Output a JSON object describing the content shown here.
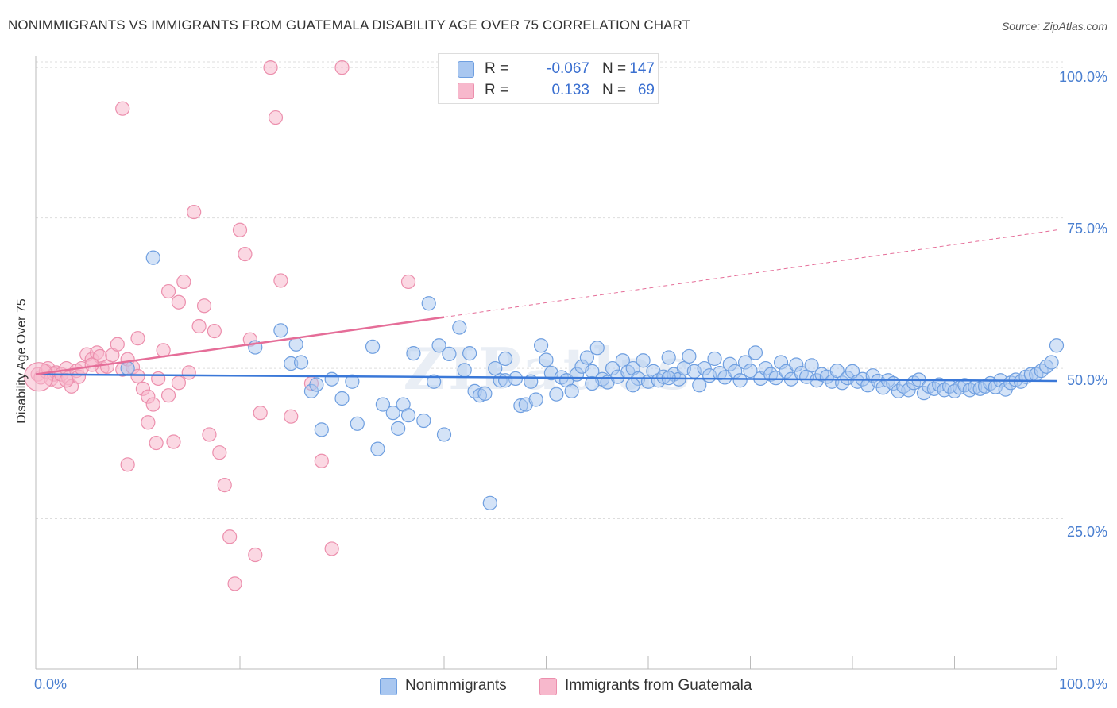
{
  "title": "NONIMMIGRANTS VS IMMIGRANTS FROM GUATEMALA DISABILITY AGE OVER 75 CORRELATION CHART",
  "source": "Source: ZipAtlas.com",
  "watermark": "ZIPatlas",
  "colors": {
    "blue_fill": "#a9c7f0",
    "blue_stroke": "#6f9fe0",
    "blue_line": "#3a78d8",
    "pink_fill": "#f7b8cc",
    "pink_stroke": "#ec8fad",
    "pink_line": "#e56d98",
    "axis_text": "#4a7fd0",
    "grid": "#dddddd"
  },
  "legend": {
    "rows": [
      {
        "r_label": "R =",
        "r_value": "-0.067",
        "n_label": "N =",
        "n_value": "147",
        "color": "#a9c7f0"
      },
      {
        "r_label": "R =",
        "r_value": "0.133",
        "n_label": "N =",
        "n_value": "69",
        "color": "#f7b8cc"
      }
    ]
  },
  "bottom_legend": [
    {
      "label": "Nonimmigrants",
      "color": "#a9c7f0"
    },
    {
      "label": "Immigrants from Guatemala",
      "color": "#f7b8cc"
    }
  ],
  "chart_data": {
    "type": "scatter",
    "title": "NONIMMIGRANTS VS IMMIGRANTS FROM GUATEMALA DISABILITY AGE OVER 75 CORRELATION CHART",
    "xlabel": "",
    "ylabel": "Disability Age Over 75",
    "xlim": [
      0,
      100
    ],
    "ylim": [
      0,
      102
    ],
    "x_tick_labels": [
      "0.0%",
      "100.0%"
    ],
    "y_ticks": [
      25,
      50,
      75,
      100
    ],
    "y_tick_labels": [
      "25.0%",
      "50.0%",
      "75.0%",
      "100.0%"
    ],
    "grid": true,
    "series": [
      {
        "name": "Nonimmigrants",
        "r": -0.067,
        "n": 147,
        "trend": {
          "x0": 0,
          "y0": 49.0,
          "x1": 100,
          "y1": 47.9,
          "style": "solid"
        },
        "points": [
          [
            11.5,
            68.4
          ],
          [
            9.0,
            50.0
          ],
          [
            21.5,
            53.5
          ],
          [
            24.0,
            56.3
          ],
          [
            25.0,
            50.8
          ],
          [
            25.5,
            54.0
          ],
          [
            26.0,
            51.0
          ],
          [
            27.0,
            46.2
          ],
          [
            27.5,
            47.3
          ],
          [
            28.0,
            39.8
          ],
          [
            29.0,
            48.2
          ],
          [
            30.0,
            45.0
          ],
          [
            31.0,
            47.8
          ],
          [
            31.5,
            40.8
          ],
          [
            33.0,
            53.6
          ],
          [
            33.5,
            36.6
          ],
          [
            34.0,
            44.0
          ],
          [
            35.0,
            42.6
          ],
          [
            35.5,
            40.0
          ],
          [
            36.0,
            44.0
          ],
          [
            36.5,
            42.2
          ],
          [
            37.0,
            52.5
          ],
          [
            38.0,
            41.3
          ],
          [
            38.5,
            60.8
          ],
          [
            39.0,
            47.8
          ],
          [
            39.5,
            53.8
          ],
          [
            40.0,
            39.0
          ],
          [
            40.5,
            52.4
          ],
          [
            41.5,
            56.8
          ],
          [
            42.0,
            49.7
          ],
          [
            42.5,
            52.5
          ],
          [
            43.0,
            46.2
          ],
          [
            43.5,
            45.5
          ],
          [
            44.0,
            45.8
          ],
          [
            44.5,
            27.6
          ],
          [
            45.0,
            50.0
          ],
          [
            45.5,
            48.0
          ],
          [
            46.0,
            51.6
          ],
          [
            47.0,
            48.3
          ],
          [
            47.5,
            43.8
          ],
          [
            48.0,
            44.0
          ],
          [
            48.5,
            47.8
          ],
          [
            49.0,
            44.8
          ],
          [
            49.5,
            53.8
          ],
          [
            50.0,
            51.4
          ],
          [
            50.5,
            49.2
          ],
          [
            51.0,
            45.7
          ],
          [
            51.5,
            48.5
          ],
          [
            52.0,
            48.0
          ],
          [
            52.5,
            46.2
          ],
          [
            53.0,
            49.0
          ],
          [
            53.5,
            50.3
          ],
          [
            54.0,
            51.8
          ],
          [
            54.5,
            49.5
          ],
          [
            55.0,
            53.4
          ],
          [
            55.5,
            48.2
          ],
          [
            56.0,
            47.7
          ],
          [
            56.5,
            50.0
          ],
          [
            57.0,
            48.6
          ],
          [
            57.5,
            51.3
          ],
          [
            58.0,
            49.4
          ],
          [
            58.5,
            50.0
          ],
          [
            59.0,
            48.3
          ],
          [
            59.5,
            51.3
          ],
          [
            60.0,
            47.8
          ],
          [
            60.5,
            49.5
          ],
          [
            61.0,
            48.0
          ],
          [
            61.5,
            48.6
          ],
          [
            62.0,
            51.8
          ],
          [
            62.5,
            49.0
          ],
          [
            63.0,
            48.2
          ],
          [
            63.5,
            50.0
          ],
          [
            64.0,
            52.0
          ],
          [
            64.5,
            49.5
          ],
          [
            65.0,
            47.2
          ],
          [
            65.5,
            50.0
          ],
          [
            66.0,
            48.8
          ],
          [
            66.5,
            51.6
          ],
          [
            67.0,
            49.2
          ],
          [
            67.5,
            48.5
          ],
          [
            68.0,
            50.7
          ],
          [
            68.5,
            49.5
          ],
          [
            69.0,
            48.0
          ],
          [
            69.5,
            51.0
          ],
          [
            70.0,
            49.6
          ],
          [
            70.5,
            52.6
          ],
          [
            71.0,
            48.3
          ],
          [
            71.5,
            50.0
          ],
          [
            72.0,
            49.0
          ],
          [
            72.5,
            48.4
          ],
          [
            73.0,
            51.0
          ],
          [
            73.5,
            49.5
          ],
          [
            74.0,
            48.2
          ],
          [
            74.5,
            50.6
          ],
          [
            75.0,
            49.2
          ],
          [
            75.5,
            48.6
          ],
          [
            76.0,
            50.5
          ],
          [
            76.5,
            48.0
          ],
          [
            77.0,
            49.0
          ],
          [
            77.5,
            48.6
          ],
          [
            78.0,
            47.8
          ],
          [
            78.5,
            49.6
          ],
          [
            79.0,
            47.6
          ],
          [
            79.5,
            48.4
          ],
          [
            80.0,
            49.5
          ],
          [
            80.5,
            47.8
          ],
          [
            81.0,
            48.2
          ],
          [
            81.5,
            47.2
          ],
          [
            82.0,
            48.8
          ],
          [
            82.5,
            47.9
          ],
          [
            83.0,
            46.8
          ],
          [
            83.5,
            48.0
          ],
          [
            84.0,
            47.5
          ],
          [
            84.5,
            46.2
          ],
          [
            85.0,
            47.0
          ],
          [
            85.5,
            46.4
          ],
          [
            86.0,
            47.6
          ],
          [
            86.5,
            48.1
          ],
          [
            87.0,
            45.9
          ],
          [
            87.5,
            47.0
          ],
          [
            88.0,
            46.6
          ],
          [
            88.5,
            47.3
          ],
          [
            89.0,
            46.4
          ],
          [
            89.5,
            47.0
          ],
          [
            90.0,
            46.2
          ],
          [
            90.5,
            46.8
          ],
          [
            91.0,
            47.2
          ],
          [
            91.5,
            46.4
          ],
          [
            92.0,
            46.9
          ],
          [
            92.5,
            46.6
          ],
          [
            93.0,
            47.0
          ],
          [
            93.5,
            47.5
          ],
          [
            94.0,
            46.9
          ],
          [
            94.5,
            48.0
          ],
          [
            95.0,
            46.5
          ],
          [
            95.5,
            47.6
          ],
          [
            96.0,
            48.1
          ],
          [
            96.5,
            47.8
          ],
          [
            97.0,
            48.6
          ],
          [
            97.5,
            49.0
          ],
          [
            98.0,
            49.0
          ],
          [
            98.5,
            49.6
          ],
          [
            99.0,
            50.3
          ],
          [
            99.5,
            51.0
          ],
          [
            100.0,
            53.8
          ],
          [
            46.0,
            48.0
          ],
          [
            54.5,
            47.5
          ],
          [
            58.5,
            47.2
          ],
          [
            62.0,
            48.4
          ]
        ]
      },
      {
        "name": "Immigrants from Guatemala",
        "r": 0.133,
        "n": 69,
        "trend": {
          "x0": 0,
          "y0": 49.0,
          "x1": 40,
          "y1": 58.5,
          "x_end_dashed": 100,
          "y_end_dashed": 73.0,
          "style": "solid-then-dashed"
        },
        "points": [
          [
            0.2,
            49.0
          ],
          [
            0.5,
            48.5
          ],
          [
            1.0,
            49.5
          ],
          [
            1.2,
            50.0
          ],
          [
            1.5,
            48.2
          ],
          [
            1.8,
            49.0
          ],
          [
            2.0,
            49.3
          ],
          [
            2.2,
            47.8
          ],
          [
            2.5,
            49.0
          ],
          [
            3.0,
            50.0
          ],
          [
            3.2,
            48.4
          ],
          [
            3.5,
            47.0
          ],
          [
            4.0,
            49.6
          ],
          [
            4.2,
            48.6
          ],
          [
            4.5,
            50.0
          ],
          [
            5.0,
            52.3
          ],
          [
            5.5,
            51.5
          ],
          [
            6.0,
            52.6
          ],
          [
            6.3,
            52.0
          ],
          [
            6.5,
            50.0
          ],
          [
            7.0,
            50.3
          ],
          [
            7.5,
            52.2
          ],
          [
            8.0,
            54.0
          ],
          [
            8.5,
            49.8
          ],
          [
            9.0,
            51.5
          ],
          [
            9.5,
            50.2
          ],
          [
            10.0,
            48.7
          ],
          [
            10.5,
            46.6
          ],
          [
            11.0,
            45.3
          ],
          [
            11.5,
            44.0
          ],
          [
            12.0,
            48.3
          ],
          [
            12.5,
            53.0
          ],
          [
            13.0,
            45.5
          ],
          [
            13.5,
            37.8
          ],
          [
            14.0,
            61.0
          ],
          [
            14.5,
            64.4
          ],
          [
            15.0,
            49.3
          ],
          [
            15.5,
            76.0
          ],
          [
            16.0,
            57.0
          ],
          [
            16.5,
            60.4
          ],
          [
            17.0,
            39.0
          ],
          [
            17.5,
            56.2
          ],
          [
            18.0,
            36.0
          ],
          [
            18.5,
            30.6
          ],
          [
            19.0,
            22.0
          ],
          [
            19.5,
            14.2
          ],
          [
            20.0,
            73.0
          ],
          [
            20.5,
            69.0
          ],
          [
            21.0,
            54.8
          ],
          [
            21.5,
            19.0
          ],
          [
            22.0,
            42.6
          ],
          [
            23.0,
            100.0
          ],
          [
            23.5,
            91.7
          ],
          [
            24.0,
            64.6
          ],
          [
            25.0,
            42.0
          ],
          [
            27.0,
            47.5
          ],
          [
            28.0,
            34.6
          ],
          [
            29.0,
            20.0
          ],
          [
            30.0,
            100.0
          ],
          [
            36.5,
            64.4
          ],
          [
            8.5,
            93.2
          ],
          [
            9.0,
            34.0
          ],
          [
            10.0,
            55.0
          ],
          [
            11.0,
            41.0
          ],
          [
            11.8,
            37.6
          ],
          [
            13.0,
            62.8
          ],
          [
            14.0,
            47.6
          ],
          [
            3.0,
            48.0
          ],
          [
            5.5,
            50.6
          ]
        ]
      }
    ]
  }
}
